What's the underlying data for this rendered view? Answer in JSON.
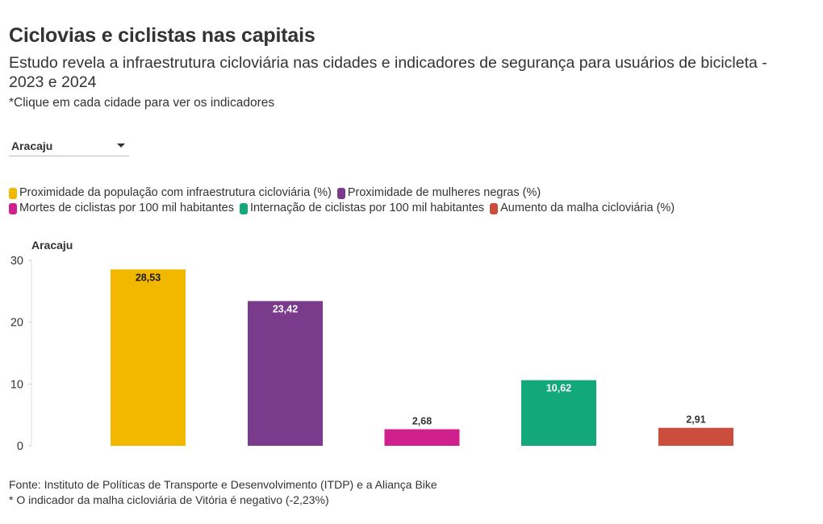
{
  "header": {
    "title": "Ciclovias e ciclistas nas capitais",
    "subtitle": "Estudo revela a infraestrutura cicloviária nas cidades e indicadores de segurança para usuários de bicicleta - 2023 e 2024",
    "note": "*Clique em cada cidade para ver os indicadores"
  },
  "selector": {
    "selected": "Aracaju"
  },
  "legend": {
    "items": [
      {
        "label": "Proximidade da população com infraestrutura cicloviária (%)",
        "color": "#F2B800"
      },
      {
        "label": "Proximidade de mulheres negras (%)",
        "color": "#7B3B8C"
      },
      {
        "label": "Mortes de ciclistas por 100 mil habitantes",
        "color": "#D0208E"
      },
      {
        "label": "Internação de ciclistas por 100 mil habitantes",
        "color": "#13A87A"
      },
      {
        "label": "Aumento da malha cicloviária (%)",
        "color": "#CB4E3C"
      }
    ]
  },
  "chart_data": {
    "type": "bar",
    "title": "Aracaju",
    "categories": [
      "Proximidade da população com infraestrutura cicloviária (%)",
      "Proximidade de mulheres negras (%)",
      "Mortes de ciclistas por 100 mil habitantes",
      "Internação de ciclistas por 100 mil habitantes",
      "Aumento da malha cicloviária (%)"
    ],
    "values": [
      28.53,
      23.42,
      2.68,
      10.62,
      2.91
    ],
    "value_labels": [
      "28,53",
      "23,42",
      "2,68",
      "10,62",
      "2,91"
    ],
    "colors": [
      "#F2B800",
      "#7B3B8C",
      "#D0208E",
      "#13A87A",
      "#CB4E3C"
    ],
    "label_inside": [
      true,
      true,
      false,
      true,
      false
    ],
    "label_colors": [
      "#1a1a1a",
      "#ffffff",
      "#333333",
      "#ffffff",
      "#333333"
    ],
    "yticks": [
      0,
      10,
      20,
      30
    ],
    "ylim": [
      0,
      30
    ],
    "xlabel": "",
    "ylabel": ""
  },
  "footer": {
    "source": "Fonte: Instituto de Políticas de Transporte e Desenvolvimento (ITDP) e a Aliança Bike",
    "footnote": "* O indicador da malha cicloviária de Vitória é negativo (-2,23%)"
  }
}
